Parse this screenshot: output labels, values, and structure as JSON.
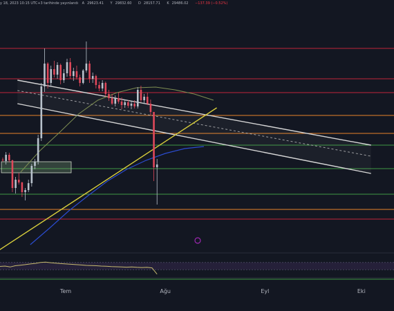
{
  "header": {
    "updated_text": "y 18, 2023 10:15 UTC+3 tarihinde yayınlandı",
    "ohlc": [
      {
        "label": "A",
        "value": "29623.41"
      },
      {
        "label": "Y",
        "value": "29832.60"
      },
      {
        "label": "D",
        "value": "28157.71"
      },
      {
        "label": "K",
        "value": "29486.02"
      },
      {
        "label": "change",
        "value": "−137.39 (−0.52%)"
      }
    ]
  },
  "chart_data": {
    "type": "candlestick",
    "title": "",
    "x_ticks": [
      {
        "label": "Tem",
        "index": 17
      },
      {
        "label": "Ağu",
        "index": 48
      },
      {
        "label": "Eyl",
        "index": 79
      },
      {
        "label": "Eki",
        "index": 109
      }
    ],
    "ylim": [
      0,
      450
    ],
    "colors": {
      "background": "#131722",
      "up": "#b8c2cc",
      "down": "#e0485a",
      "resistance": "#c2263a",
      "orange": "#e8832a",
      "support": "#3f9a44",
      "channel": "#d6d6d6",
      "trendline": "#d9cf3c",
      "ma_short": "#7f8f53",
      "ma_long": "#2b4cd0",
      "rsi": "#c7bb6e",
      "rsi_band": "#2a2340"
    },
    "horizontal_levels": [
      {
        "y": 380,
        "color": "resistance"
      },
      {
        "y": 336,
        "color": "resistance"
      },
      {
        "y": 316,
        "color": "resistance"
      },
      {
        "y": 283,
        "color": "orange"
      },
      {
        "y": 257,
        "color": "orange"
      },
      {
        "y": 240,
        "color": "support"
      },
      {
        "y": 206,
        "color": "support"
      },
      {
        "y": 169,
        "color": "support"
      },
      {
        "y": 147,
        "color": "orange"
      },
      {
        "y": 133,
        "color": "resistance"
      },
      {
        "y": 84,
        "color": "support"
      },
      {
        "y": 46,
        "color": "support"
      }
    ],
    "channel_lines": [
      {
        "from": [
          5,
          334
        ],
        "to": [
          115,
          240
        ],
        "color": "channel",
        "dashed": false
      },
      {
        "from": [
          5,
          300
        ],
        "to": [
          115,
          199
        ],
        "color": "channel",
        "dashed": false
      },
      {
        "from": [
          5,
          319
        ],
        "to": [
          115,
          224
        ],
        "color": "channel",
        "dashed": true
      }
    ],
    "trend_lines": [
      {
        "from": [
          -5,
          75
        ],
        "to": [
          67,
          294
        ],
        "color": "trendline"
      }
    ],
    "zone": {
      "from_index": 0,
      "to_index": 19,
      "top": 216,
      "bottom": 200
    },
    "candles": [
      [
        219,
        222,
        216,
        218
      ],
      [
        217,
        230,
        212,
        226
      ],
      [
        226,
        229,
        215,
        218
      ],
      [
        218,
        219,
        172,
        178
      ],
      [
        178,
        194,
        170,
        190
      ],
      [
        190,
        200,
        183,
        186
      ],
      [
        186,
        187,
        165,
        172
      ],
      [
        172,
        178,
        160,
        175
      ],
      [
        175,
        190,
        172,
        185
      ],
      [
        185,
        213,
        180,
        210
      ],
      [
        210,
        220,
        205,
        216
      ],
      [
        216,
        255,
        212,
        250
      ],
      [
        250,
        330,
        246,
        325
      ],
      [
        325,
        380,
        317,
        358
      ],
      [
        358,
        360,
        322,
        330
      ],
      [
        330,
        355,
        326,
        350
      ],
      [
        350,
        362,
        338,
        342
      ],
      [
        342,
        360,
        336,
        356
      ],
      [
        356,
        358,
        328,
        334
      ],
      [
        334,
        350,
        330,
        344
      ],
      [
        344,
        365,
        339,
        360
      ],
      [
        360,
        366,
        336,
        340
      ],
      [
        340,
        352,
        333,
        347
      ],
      [
        347,
        355,
        335,
        338
      ],
      [
        338,
        342,
        325,
        330
      ],
      [
        330,
        350,
        328,
        348
      ],
      [
        348,
        390,
        345,
        358
      ],
      [
        358,
        362,
        330,
        336
      ],
      [
        336,
        345,
        330,
        340
      ],
      [
        340,
        342,
        322,
        327
      ],
      [
        327,
        332,
        318,
        322
      ],
      [
        322,
        334,
        318,
        330
      ],
      [
        330,
        332,
        310,
        314
      ],
      [
        314,
        320,
        304,
        308
      ],
      [
        308,
        314,
        298,
        300
      ],
      [
        300,
        312,
        296,
        308
      ],
      [
        308,
        316,
        300,
        303
      ],
      [
        303,
        309,
        292,
        298
      ],
      [
        298,
        306,
        294,
        302
      ],
      [
        302,
        305,
        294,
        297
      ],
      [
        297,
        304,
        292,
        300
      ],
      [
        300,
        305,
        293,
        296
      ],
      [
        296,
        324,
        293,
        320
      ],
      [
        320,
        326,
        302,
        305
      ],
      [
        305,
        314,
        300,
        310
      ],
      [
        310,
        316,
        298,
        300
      ],
      [
        300,
        306,
        283,
        288
      ],
      [
        288,
        288,
        188,
        208
      ],
      [
        208,
        220,
        154,
        212
      ]
    ],
    "ma_short": [
      [
        6,
        201
      ],
      [
        12,
        232
      ],
      [
        18,
        258
      ],
      [
        24,
        285
      ],
      [
        30,
        305
      ],
      [
        36,
        316
      ],
      [
        42,
        323
      ],
      [
        48,
        324
      ],
      [
        54,
        320
      ],
      [
        60,
        314
      ],
      [
        66,
        305
      ]
    ],
    "ma_long": [
      [
        9,
        96
      ],
      [
        15,
        120
      ],
      [
        21,
        145
      ],
      [
        27,
        167
      ],
      [
        33,
        188
      ],
      [
        39,
        205
      ],
      [
        45,
        218
      ],
      [
        51,
        228
      ],
      [
        57,
        235
      ],
      [
        63,
        238
      ]
    ],
    "rsi": {
      "ylim": [
        0,
        100
      ],
      "band": [
        30,
        70
      ],
      "values": [
        48,
        50,
        45,
        52,
        55,
        58,
        62,
        65,
        70,
        72,
        69,
        66,
        64,
        62,
        60,
        58,
        56,
        54,
        53,
        52,
        50,
        49,
        47,
        46,
        45,
        44,
        45,
        43,
        42,
        43,
        40,
        5
      ]
    }
  }
}
